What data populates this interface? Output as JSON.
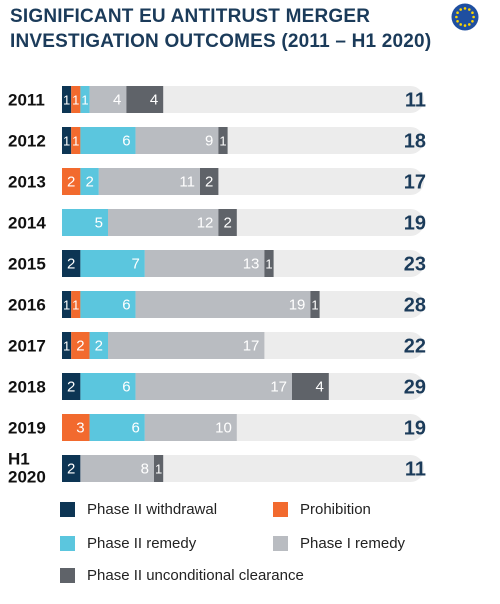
{
  "title": "SIGNIFICANT EU ANTITRUST MERGER INVESTIGATION OUTCOMES (2011 – H1 2020)",
  "logo": {
    "icon": "eu-flag",
    "color": "#1f4fa0",
    "star_color": "#ffd700"
  },
  "chart_data": {
    "type": "bar",
    "orientation": "horizontal",
    "stacked": true,
    "categories": [
      "2011",
      "2012",
      "2013",
      "2014",
      "2015",
      "2016",
      "2017",
      "2018",
      "2019",
      "H1 2020"
    ],
    "series": [
      {
        "name": "Phase II withdrawal",
        "color": "#0d3554",
        "values": [
          1,
          1,
          0,
          0,
          2,
          1,
          1,
          2,
          0,
          2
        ]
      },
      {
        "name": "Prohibition",
        "color": "#f26a2e",
        "values": [
          1,
          1,
          2,
          0,
          0,
          1,
          2,
          0,
          3,
          0
        ]
      },
      {
        "name": "Phase II remedy",
        "color": "#5bc6de",
        "values": [
          1,
          6,
          2,
          5,
          7,
          6,
          2,
          6,
          6,
          0
        ]
      },
      {
        "name": "Phase I remedy",
        "color": "#b9bcc1",
        "values": [
          4,
          9,
          11,
          12,
          13,
          19,
          17,
          17,
          10,
          8
        ]
      },
      {
        "name": "Phase II unconditional clearance",
        "color": "#5f6369",
        "values": [
          4,
          1,
          2,
          2,
          1,
          1,
          0,
          4,
          0,
          1
        ]
      }
    ],
    "totals": [
      11,
      18,
      17,
      19,
      23,
      28,
      22,
      29,
      19,
      11
    ],
    "track_color": "#ececec",
    "xlim": [
      0,
      40
    ],
    "grid": false,
    "legend_position": "bottom"
  }
}
